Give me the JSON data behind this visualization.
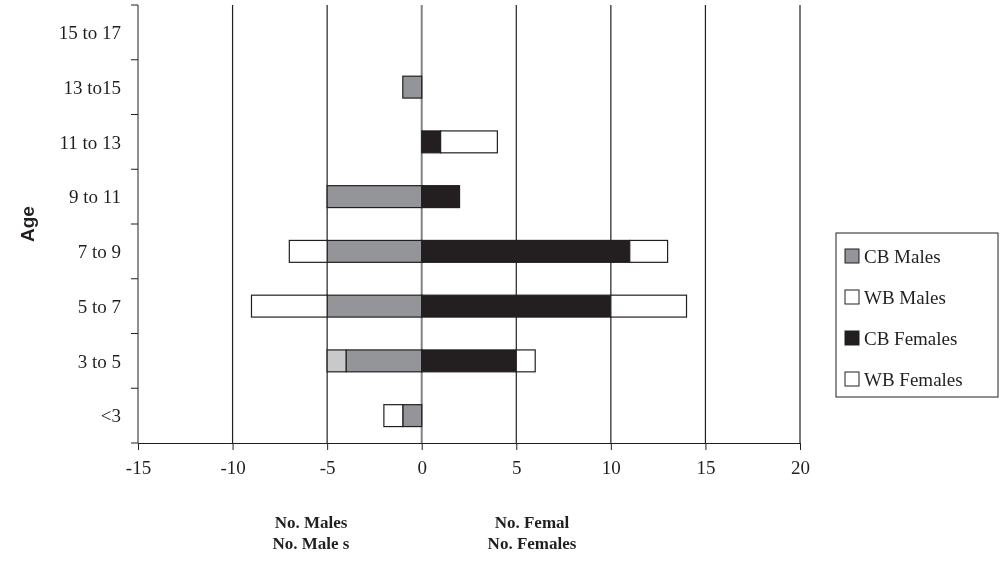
{
  "chart_data": {
    "type": "bar",
    "orientation": "horizontal",
    "stacked": true,
    "categories": [
      "15 to 17",
      "13 to15",
      "11 to 13",
      "9 to 11",
      "7 to 9",
      "5 to 7",
      "3 to 5",
      "<3"
    ],
    "series": [
      {
        "name": "CB Males",
        "color": "#939598",
        "values": [
          null,
          -1,
          null,
          -5,
          -5,
          -5,
          -4,
          -1
        ]
      },
      {
        "name": "WB Males",
        "color": "#ffffff",
        "colors": [
          "#ffffff",
          "#ffffff",
          "#ffffff",
          "#ffffff",
          "#ffffff",
          "#ffffff",
          "#c8c9cb",
          "#ffffff"
        ],
        "values": [
          null,
          null,
          null,
          null,
          -2,
          -4,
          -1,
          -1
        ]
      },
      {
        "name": "CB Females",
        "color": "#231f20",
        "values": [
          null,
          null,
          1,
          2,
          11,
          10,
          5,
          null
        ]
      },
      {
        "name": "WB Females",
        "color": "#ffffff",
        "values": [
          null,
          null,
          3,
          null,
          2,
          4,
          1,
          null
        ]
      }
    ],
    "xlim": [
      -15,
      20
    ],
    "xticks": [
      -15,
      -10,
      -5,
      0,
      5,
      10,
      15,
      20
    ],
    "ylabel": "Age",
    "grid": "x",
    "legend": "right",
    "annotations": [
      "No. Males\nNo. Male s",
      "No. Femal\nNo. Females"
    ]
  }
}
